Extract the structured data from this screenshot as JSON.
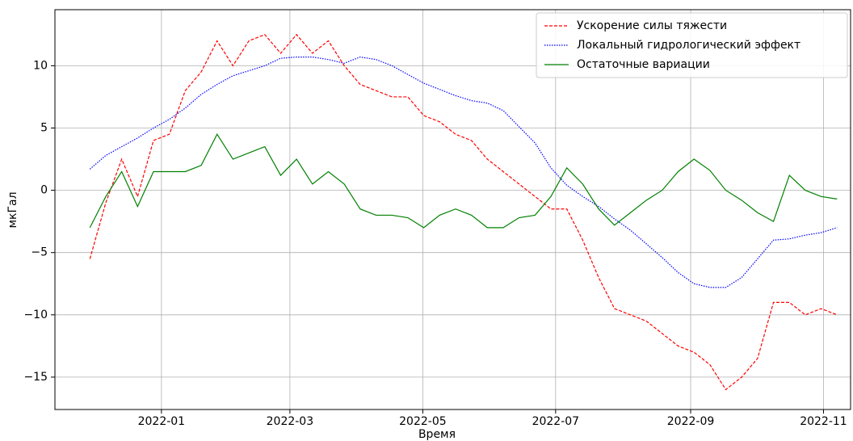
{
  "chart_data": {
    "type": "line",
    "x_label": "Время",
    "y_label": "мкГал",
    "x": [
      2021.91,
      2021.93,
      2021.95,
      2021.97,
      2021.99,
      2022.01,
      2022.03,
      2022.05,
      2022.07,
      2022.09,
      2022.11,
      2022.13,
      2022.15,
      2022.17,
      2022.19,
      2022.21,
      2022.23,
      2022.25,
      2022.27,
      2022.29,
      2022.31,
      2022.33,
      2022.35,
      2022.37,
      2022.39,
      2022.41,
      2022.43,
      2022.45,
      2022.47,
      2022.49,
      2022.51,
      2022.53,
      2022.55,
      2022.57,
      2022.59,
      2022.61,
      2022.63,
      2022.65,
      2022.67,
      2022.69,
      2022.71,
      2022.73,
      2022.75,
      2022.77,
      2022.79,
      2022.81,
      2022.83,
      2022.85
    ],
    "series": [
      {
        "name": "Ускорение силы тяжести",
        "color": "#ff0000",
        "style": "dashed",
        "values": [
          -5.5,
          -1,
          2.5,
          -0.5,
          4,
          4.5,
          8,
          9.5,
          12,
          10,
          12,
          12.5,
          11,
          12.5,
          11,
          12,
          10,
          8.5,
          8,
          7.5,
          7.5,
          6,
          5.5,
          4.5,
          4,
          2.5,
          1.5,
          0.5,
          -0.5,
          -1.5,
          -1.5,
          -4,
          -7,
          -9.5,
          -10,
          -10.5,
          -11.5,
          -12.5,
          -13,
          -14,
          -16,
          -15,
          -13.5,
          -9,
          -9,
          -10,
          -9.5,
          -10
        ]
      },
      {
        "name": "Локальный гидрологический эффект",
        "color": "#0000ff",
        "style": "dotted",
        "values": [
          1.7,
          2.8,
          3.5,
          4.2,
          5,
          5.7,
          6.6,
          7.7,
          8.5,
          9.2,
          9.6,
          10,
          10.6,
          10.7,
          10.7,
          10.5,
          10.2,
          10.7,
          10.5,
          10,
          9.3,
          8.6,
          8.1,
          7.6,
          7.2,
          7,
          6.4,
          5.1,
          3.8,
          1.8,
          0.4,
          -0.5,
          -1.3,
          -2.3,
          -3.2,
          -4.3,
          -5.4,
          -6.6,
          -7.5,
          -7.8,
          -7.8,
          -7,
          -5.5,
          -4,
          -3.9,
          -3.6,
          -3.4,
          -3
        ]
      },
      {
        "name": "Остаточные вариации",
        "color": "#008000",
        "style": "solid",
        "values": [
          -3,
          -0.5,
          1.5,
          -1.3,
          1.5,
          1.5,
          1.5,
          2,
          4.5,
          2.5,
          3,
          3.5,
          1.2,
          2.5,
          0.5,
          1.5,
          0.5,
          -1.5,
          -2,
          -2,
          -2.2,
          -3,
          -2,
          -1.5,
          -2,
          -3,
          -3,
          -2.2,
          -2,
          -0.5,
          1.8,
          0.5,
          -1.5,
          -2.8,
          -1.8,
          -0.8,
          0,
          1.5,
          2.5,
          1.6,
          0,
          -0.8,
          -1.8,
          -2.5,
          1.2,
          0,
          -0.5,
          -0.7
        ]
      }
    ],
    "xlim": [
      2021.866,
      2022.867
    ],
    "xticks": [
      {
        "value": 2022.0,
        "label": "2022-01"
      },
      {
        "value": 2022.1616,
        "label": "2022-03"
      },
      {
        "value": 2022.3288,
        "label": "2022-05"
      },
      {
        "value": 2022.4959,
        "label": "2022-07"
      },
      {
        "value": 2022.6658,
        "label": "2022-09"
      },
      {
        "value": 2022.8329,
        "label": "2022-11"
      }
    ],
    "ylim": [
      -17.6,
      14.5
    ],
    "yticks": [
      {
        "value": -15,
        "label": "−15"
      },
      {
        "value": -10,
        "label": "−10"
      },
      {
        "value": -5,
        "label": "−5"
      },
      0,
      5,
      10
    ],
    "grid": true,
    "legend": "upper right"
  }
}
